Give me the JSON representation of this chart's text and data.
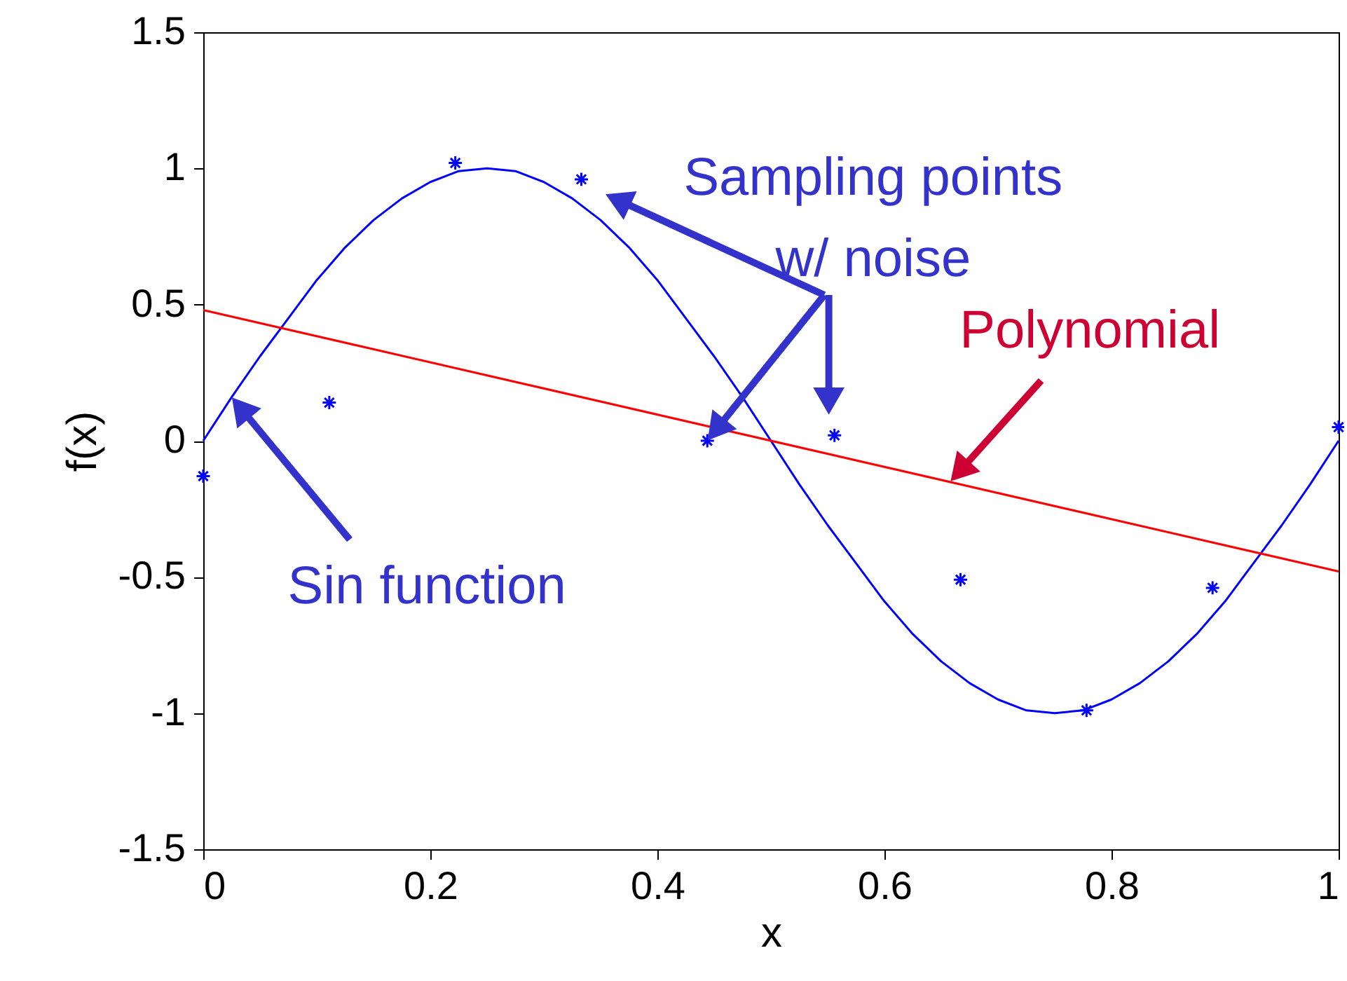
{
  "chart_data": {
    "type": "line",
    "xlabel": "x",
    "ylabel": "f(x)",
    "xlim": [
      0,
      1
    ],
    "ylim": [
      -1.5,
      1.5
    ],
    "xticks": [
      0,
      0.2,
      0.4,
      0.6,
      0.8,
      1
    ],
    "yticks": [
      -1.5,
      -1,
      -0.5,
      0,
      0.5,
      1,
      1.5
    ],
    "grid": false,
    "legend": false,
    "series": [
      {
        "color": "#0000ff",
        "x": [
          0,
          0.025,
          0.05,
          0.075,
          0.1,
          0.125,
          0.15,
          0.175,
          0.2,
          0.225,
          0.25,
          0.275,
          0.3,
          0.325,
          0.35,
          0.375,
          0.4,
          0.425,
          0.45,
          0.475,
          0.5,
          0.525,
          0.55,
          0.575,
          0.6,
          0.625,
          0.65,
          0.675,
          0.7,
          0.725,
          0.75,
          0.775,
          0.8,
          0.825,
          0.85,
          0.875,
          0.9,
          0.925,
          0.95,
          0.975,
          1
        ],
        "values": [
          0,
          0.16,
          0.31,
          0.45,
          0.59,
          0.71,
          0.81,
          0.89,
          0.95,
          0.99,
          1,
          0.99,
          0.95,
          0.89,
          0.81,
          0.71,
          0.59,
          0.45,
          0.31,
          0.16,
          0,
          -0.16,
          -0.31,
          -0.45,
          -0.59,
          -0.71,
          -0.81,
          -0.89,
          -0.95,
          -0.99,
          -1,
          -0.99,
          -0.95,
          -0.89,
          -0.81,
          -0.71,
          -0.59,
          -0.45,
          -0.31,
          -0.16,
          0
        ]
      },
      {
        "color": "#ff0000",
        "x": [
          0,
          1
        ],
        "values": [
          0.48,
          -0.48
        ]
      },
      {
        "type": "scatter",
        "color": "#0000ff",
        "marker": "cross",
        "x": [
          0,
          0.111,
          0.222,
          0.333,
          0.444,
          0.556,
          0.667,
          0.778,
          0.889,
          1
        ],
        "values": [
          -0.13,
          0.14,
          1.02,
          0.96,
          0,
          0.02,
          -0.51,
          -0.99,
          -0.54,
          0.05
        ]
      }
    ],
    "annotations": [
      {
        "text": "Sampling points\nw/ noise",
        "x": 0.444,
        "y": 0
      },
      {
        "text": "Polynomial",
        "x": 0.658,
        "y": -0.15
      },
      "Sin function"
    ]
  }
}
